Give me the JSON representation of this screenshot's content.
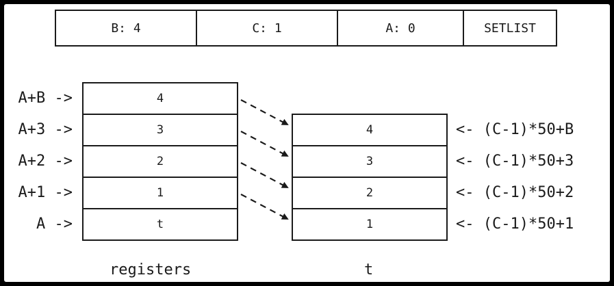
{
  "instruction": {
    "fields": [
      "B: 4",
      "C: 1",
      "A: 0",
      "SETLIST"
    ]
  },
  "registers": {
    "cells": [
      "4",
      "3",
      "2",
      "1",
      "t"
    ],
    "labels": [
      "A+B ->",
      "A+3 ->",
      "A+2 ->",
      "A+1 ->",
      "A ->"
    ],
    "caption": "registers"
  },
  "table": {
    "cells": [
      "4",
      "3",
      "2",
      "1"
    ],
    "labels": [
      "<- (C-1)*50+B",
      "<- (C-1)*50+3",
      "<- (C-1)*50+2",
      "<- (C-1)*50+1"
    ],
    "caption": "t"
  }
}
